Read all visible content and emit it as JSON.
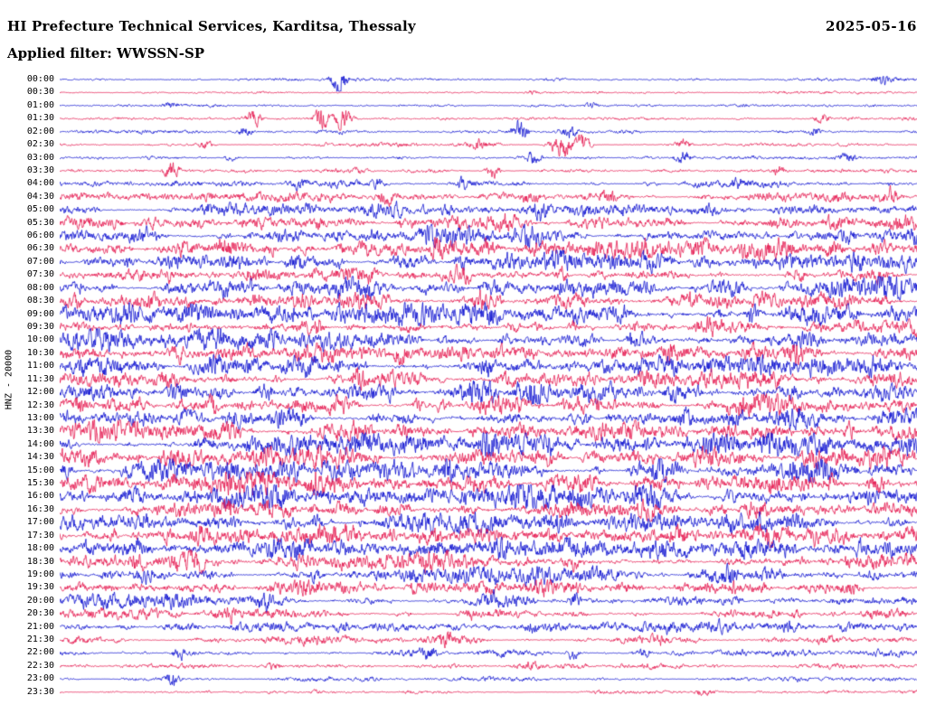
{
  "header": {
    "title": "HI Prefecture Technical Services, Karditsa, Thessaly",
    "date": "2025-05-16",
    "filter_label": "Applied filter: WWSSN-SP"
  },
  "side_label": "HNZ - 20000",
  "chart_data": {
    "type": "line",
    "subtype": "helicorder-seismogram",
    "title": "HI Prefecture Technical Services, Karditsa, Thessaly",
    "date": "2025-05-16",
    "filter": "WWSSN-SP",
    "channel_gain_label": "HNZ - 20000",
    "row_duration_minutes": 30,
    "rows_count": 48,
    "grid": false,
    "legend": "none",
    "colors": {
      "blue": "#0a0ecf",
      "red": "#e4174e"
    },
    "color_cycle": [
      "blue",
      "red"
    ],
    "amplitude_note": "amp is relative envelope 0-1 per half-hour row; spikes are [x_fraction, strength, optional_width] transient events read from the trace",
    "rows": [
      {
        "time": "00:00",
        "amp": 0.09,
        "spikes": [
          [
            0.326,
            1.0
          ],
          [
            0.959,
            0.5
          ]
        ]
      },
      {
        "time": "00:30",
        "amp": 0.08,
        "spikes": [
          [
            0.55,
            0.15
          ]
        ]
      },
      {
        "time": "01:00",
        "amp": 0.09,
        "spikes": [
          [
            0.13,
            0.3
          ],
          [
            0.62,
            0.2
          ]
        ]
      },
      {
        "time": "01:30",
        "amp": 0.1,
        "spikes": [
          [
            0.226,
            0.6
          ],
          [
            0.305,
            0.9
          ],
          [
            0.33,
            1.0
          ],
          [
            0.89,
            0.4
          ]
        ]
      },
      {
        "time": "02:00",
        "amp": 0.1,
        "spikes": [
          [
            0.215,
            0.35
          ],
          [
            0.537,
            0.8
          ],
          [
            0.595,
            0.55
          ],
          [
            0.88,
            0.25
          ]
        ]
      },
      {
        "time": "02:30",
        "amp": 0.11,
        "spikes": [
          [
            0.17,
            0.25
          ],
          [
            0.49,
            0.4
          ],
          [
            0.585,
            1.0,
            0.008
          ],
          [
            0.61,
            0.8
          ],
          [
            0.727,
            0.3
          ]
        ]
      },
      {
        "time": "03:00",
        "amp": 0.12,
        "spikes": [
          [
            0.2,
            0.25
          ],
          [
            0.553,
            0.5
          ],
          [
            0.727,
            0.45
          ],
          [
            0.92,
            0.35
          ]
        ]
      },
      {
        "time": "03:30",
        "amp": 0.13,
        "spikes": [
          [
            0.131,
            0.85
          ],
          [
            0.35,
            0.25
          ],
          [
            0.505,
            0.5
          ],
          [
            0.838,
            0.35
          ]
        ]
      },
      {
        "time": "04:00",
        "amp": 0.2,
        "spikes": [
          [
            0.28,
            0.4
          ],
          [
            0.37,
            0.5
          ],
          [
            0.47,
            0.4
          ],
          [
            0.79,
            0.3
          ]
        ]
      },
      {
        "time": "04:30",
        "amp": 0.28,
        "spikes": [
          [
            0.38,
            0.5
          ],
          [
            0.55,
            0.45
          ],
          [
            0.64,
            0.4
          ],
          [
            0.97,
            0.45
          ]
        ]
      },
      {
        "time": "05:00",
        "amp": 0.36,
        "spikes": [
          [
            0.17,
            0.3
          ],
          [
            0.45,
            0.4
          ],
          [
            0.56,
            0.45
          ],
          [
            0.76,
            0.35
          ]
        ]
      },
      {
        "time": "05:30",
        "amp": 0.42,
        "spikes": [
          [
            0.3,
            0.4
          ],
          [
            0.52,
            0.35
          ],
          [
            0.9,
            0.4
          ]
        ]
      },
      {
        "time": "06:00",
        "amp": 0.46,
        "spikes": [
          [
            0.1,
            0.4
          ],
          [
            0.43,
            0.5
          ],
          [
            0.55,
            0.4
          ],
          [
            0.92,
            0.35
          ]
        ]
      },
      {
        "time": "06:30",
        "amp": 0.5,
        "spikes": [
          [
            0.19,
            0.35
          ],
          [
            0.44,
            0.6
          ],
          [
            0.5,
            0.4
          ],
          [
            0.75,
            0.3
          ]
        ]
      },
      {
        "time": "07:00",
        "amp": 0.52,
        "spikes": [
          [
            0.08,
            0.3
          ],
          [
            0.47,
            0.5
          ],
          [
            0.52,
            0.35
          ],
          [
            0.93,
            0.4
          ]
        ]
      },
      {
        "time": "07:30",
        "amp": 0.52,
        "spikes": [
          [
            0.22,
            0.35
          ],
          [
            0.47,
            0.5
          ],
          [
            0.86,
            0.3
          ]
        ]
      },
      {
        "time": "08:00",
        "amp": 0.54,
        "spikes": [
          [
            0.28,
            0.4
          ],
          [
            0.5,
            0.45
          ],
          [
            0.79,
            0.5
          ]
        ]
      },
      {
        "time": "08:30",
        "amp": 0.54,
        "spikes": [
          [
            0.23,
            0.35
          ],
          [
            0.49,
            0.6
          ],
          [
            0.74,
            0.35
          ]
        ]
      },
      {
        "time": "09:00",
        "amp": 0.56,
        "spikes": [
          [
            0.33,
            0.55
          ],
          [
            0.5,
            0.4
          ],
          [
            0.81,
            0.6
          ]
        ]
      },
      {
        "time": "09:30",
        "amp": 0.52,
        "spikes": [
          [
            0.3,
            0.4
          ],
          [
            0.6,
            0.35
          ],
          [
            0.76,
            0.45
          ]
        ]
      },
      {
        "time": "10:00",
        "amp": 0.58,
        "spikes": [
          [
            0.25,
            0.4
          ],
          [
            0.52,
            0.4
          ],
          [
            0.67,
            0.5
          ]
        ]
      },
      {
        "time": "10:30",
        "amp": 0.6,
        "spikes": [
          [
            0.4,
            0.4
          ],
          [
            0.71,
            0.6
          ],
          [
            0.86,
            0.45
          ]
        ]
      },
      {
        "time": "11:00",
        "amp": 0.62,
        "spikes": [
          [
            0.18,
            0.4
          ],
          [
            0.5,
            0.4
          ],
          [
            0.9,
            0.5
          ]
        ]
      },
      {
        "time": "11:30",
        "amp": 0.6,
        "spikes": [
          [
            0.12,
            0.5
          ],
          [
            0.35,
            0.4
          ],
          [
            0.68,
            0.4
          ],
          [
            0.97,
            0.5
          ]
        ]
      },
      {
        "time": "12:00",
        "amp": 0.63,
        "spikes": [
          [
            0.24,
            0.45
          ],
          [
            0.55,
            0.5
          ],
          [
            0.71,
            0.4
          ]
        ]
      },
      {
        "time": "12:30",
        "amp": 0.63,
        "spikes": [
          [
            0.18,
            0.4
          ],
          [
            0.42,
            0.5
          ],
          [
            0.8,
            0.45
          ]
        ]
      },
      {
        "time": "13:00",
        "amp": 0.66,
        "spikes": [
          [
            0.37,
            0.45
          ],
          [
            0.6,
            0.4
          ],
          [
            0.85,
            0.5
          ]
        ]
      },
      {
        "time": "13:30",
        "amp": 0.66,
        "spikes": [
          [
            0.4,
            0.55
          ],
          [
            0.63,
            0.4
          ],
          [
            0.92,
            0.45
          ]
        ]
      },
      {
        "time": "14:00",
        "amp": 0.66,
        "spikes": [
          [
            0.22,
            0.4
          ],
          [
            0.5,
            0.45
          ],
          [
            0.76,
            0.4
          ]
        ]
      },
      {
        "time": "14:30",
        "amp": 0.64,
        "spikes": [
          [
            0.3,
            0.45
          ],
          [
            0.57,
            0.4
          ],
          [
            0.88,
            0.4
          ]
        ]
      },
      {
        "time": "15:00",
        "amp": 0.66,
        "spikes": [
          [
            0.2,
            0.5
          ],
          [
            0.45,
            0.4
          ],
          [
            0.7,
            0.45
          ]
        ]
      },
      {
        "time": "15:30",
        "amp": 0.64,
        "spikes": [
          [
            0.3,
            0.45
          ],
          [
            0.62,
            0.5
          ],
          [
            0.9,
            0.4
          ]
        ]
      },
      {
        "time": "16:00",
        "amp": 0.62,
        "spikes": [
          [
            0.26,
            0.45
          ],
          [
            0.54,
            0.4
          ],
          [
            0.78,
            0.5
          ]
        ]
      },
      {
        "time": "16:30",
        "amp": 0.6,
        "spikes": [
          [
            0.2,
            0.4
          ],
          [
            0.48,
            0.45
          ],
          [
            0.82,
            0.4
          ]
        ]
      },
      {
        "time": "17:00",
        "amp": 0.58,
        "spikes": [
          [
            0.3,
            0.4
          ],
          [
            0.58,
            0.45
          ],
          [
            0.86,
            0.4
          ]
        ]
      },
      {
        "time": "17:30",
        "amp": 0.58,
        "spikes": [
          [
            0.16,
            0.45
          ],
          [
            0.44,
            0.4
          ],
          [
            0.72,
            0.45
          ]
        ]
      },
      {
        "time": "18:00",
        "amp": 0.55,
        "spikes": [
          [
            0.25,
            0.4
          ],
          [
            0.52,
            0.5
          ],
          [
            0.8,
            0.4
          ]
        ]
      },
      {
        "time": "18:30",
        "amp": 0.52,
        "spikes": [
          [
            0.09,
            0.6
          ],
          [
            0.16,
            0.5
          ],
          [
            0.6,
            0.4
          ]
        ]
      },
      {
        "time": "19:00",
        "amp": 0.5,
        "spikes": [
          [
            0.1,
            0.5
          ],
          [
            0.3,
            0.4
          ],
          [
            0.78,
            0.45
          ]
        ]
      },
      {
        "time": "19:30",
        "amp": 0.44,
        "spikes": [
          [
            0.28,
            0.4
          ],
          [
            0.56,
            0.35
          ],
          [
            0.92,
            0.4
          ]
        ]
      },
      {
        "time": "20:00",
        "amp": 0.36,
        "spikes": [
          [
            0.24,
            0.45
          ],
          [
            0.5,
            0.35
          ],
          [
            0.6,
            0.4
          ]
        ]
      },
      {
        "time": "20:30",
        "amp": 0.32,
        "spikes": [
          [
            0.2,
            0.3
          ],
          [
            0.48,
            0.35
          ],
          [
            0.86,
            0.3
          ]
        ]
      },
      {
        "time": "21:00",
        "amp": 0.3,
        "spikes": [
          [
            0.33,
            0.45
          ],
          [
            0.55,
            0.3
          ],
          [
            0.85,
            0.45
          ]
        ]
      },
      {
        "time": "21:30",
        "amp": 0.26,
        "spikes": [
          [
            0.45,
            0.5
          ],
          [
            0.7,
            0.3
          ]
        ]
      },
      {
        "time": "22:00",
        "amp": 0.22,
        "spikes": [
          [
            0.14,
            0.35
          ],
          [
            0.43,
            0.4
          ],
          [
            0.6,
            0.45
          ],
          [
            0.68,
            0.3
          ]
        ]
      },
      {
        "time": "22:30",
        "amp": 0.16,
        "spikes": [
          [
            0.25,
            0.3
          ],
          [
            0.55,
            0.25
          ]
        ]
      },
      {
        "time": "23:00",
        "amp": 0.13,
        "spikes": [
          [
            0.131,
            0.6
          ],
          [
            0.5,
            0.22
          ]
        ]
      },
      {
        "time": "23:30",
        "amp": 0.12,
        "spikes": [
          [
            0.3,
            0.22
          ],
          [
            0.75,
            0.18
          ]
        ]
      }
    ]
  }
}
